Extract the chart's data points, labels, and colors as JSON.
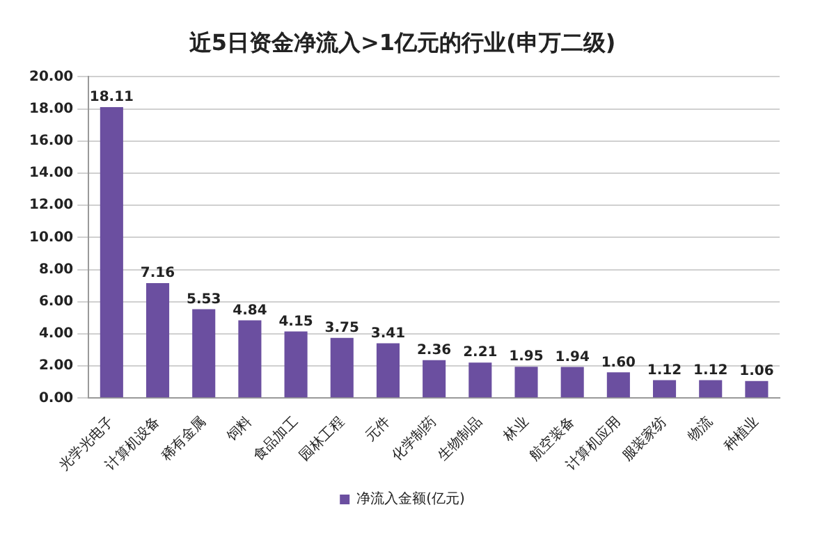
{
  "chart_data": {
    "type": "bar",
    "title": "近5日资金净流入>1亿元的行业(申万二级)",
    "categories": [
      "光学光电子",
      "计算机设备",
      "稀有金属",
      "饲料",
      "食品加工",
      "园林工程",
      "元件",
      "化学制药",
      "生物制品",
      "林业",
      "航空装备",
      "计算机应用",
      "服装家纺",
      "物流",
      "种植业"
    ],
    "series": [
      {
        "name": "净流入金额(亿元)",
        "color": "#6b4fa0",
        "values": [
          18.11,
          7.16,
          5.53,
          4.84,
          4.15,
          3.75,
          3.41,
          2.36,
          2.21,
          1.95,
          1.94,
          1.6,
          1.12,
          1.12,
          1.06
        ],
        "value_labels": [
          "18.11",
          "7.16",
          "5.53",
          "4.84",
          "4.15",
          "3.75",
          "3.41",
          "2.36",
          "2.21",
          "1.95",
          "1.94",
          "1.60",
          "1.12",
          "1.12",
          "1.06"
        ]
      }
    ],
    "ylim": [
      0,
      20
    ],
    "yticks": [
      {
        "value": 0,
        "label": "0.00"
      },
      {
        "value": 2,
        "label": "2.00"
      },
      {
        "value": 4,
        "label": "4.00"
      },
      {
        "value": 6,
        "label": "6.00"
      },
      {
        "value": 8,
        "label": "8.00"
      },
      {
        "value": 10,
        "label": "10.00"
      },
      {
        "value": 12,
        "label": "12.00"
      },
      {
        "value": 14,
        "label": "14.00"
      },
      {
        "value": 16,
        "label": "16.00"
      },
      {
        "value": 18,
        "label": "18.00"
      },
      {
        "value": 20,
        "label": "20.00"
      }
    ],
    "grid": "y",
    "legend": "bottom"
  }
}
